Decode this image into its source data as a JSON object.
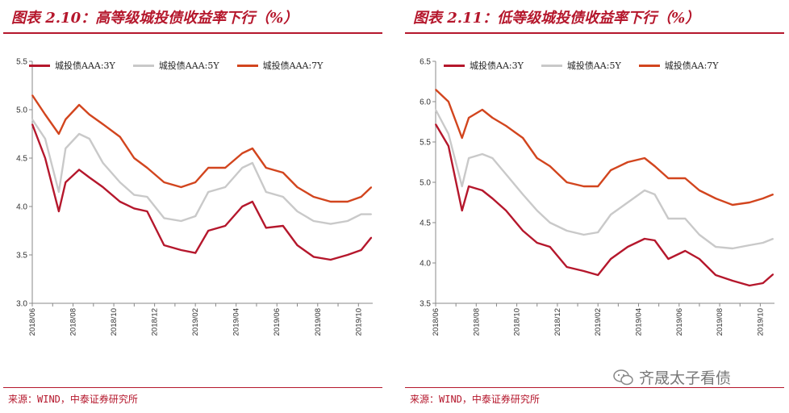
{
  "panels": [
    {
      "title": "图表 2.10：高等级城投债收益率下行（%）",
      "source": "来源：WIND，中泰证券研究所",
      "chart_data": {
        "type": "line",
        "ylim": [
          3.0,
          5.5
        ],
        "yticks": [
          "3.0",
          "3.5",
          "4.0",
          "4.5",
          "5.0",
          "5.5"
        ],
        "xlim": [
          "2018-06",
          "2019-10"
        ],
        "xticks": [
          "2018/06",
          "2018/08",
          "2018/10",
          "2018/12",
          "2019/02",
          "2019/04",
          "2019/06",
          "2019/08",
          "2019/10"
        ],
        "x": [
          "2018-06-01",
          "2018-06-20",
          "2018-07-10",
          "2018-07-20",
          "2018-08-10",
          "2018-08-25",
          "2018-09-15",
          "2018-10-10",
          "2018-11-01",
          "2018-11-20",
          "2018-12-15",
          "2019-01-10",
          "2019-02-01",
          "2019-02-20",
          "2019-03-15",
          "2019-04-10",
          "2019-04-25",
          "2019-05-15",
          "2019-06-10",
          "2019-07-01",
          "2019-07-25",
          "2019-08-20",
          "2019-09-15",
          "2019-10-05",
          "2019-10-20"
        ],
        "series": [
          {
            "name": "城投债AAA:3Y",
            "color": "#b5172c",
            "values": [
              4.85,
              4.5,
              3.95,
              4.25,
              4.38,
              4.3,
              4.2,
              4.05,
              3.98,
              3.95,
              3.6,
              3.55,
              3.52,
              3.75,
              3.8,
              4.0,
              4.05,
              3.78,
              3.8,
              3.6,
              3.48,
              3.45,
              3.5,
              3.55,
              3.68
            ]
          },
          {
            "name": "城投债AAA:5Y",
            "color": "#c9c9c9",
            "values": [
              4.9,
              4.7,
              4.15,
              4.6,
              4.75,
              4.7,
              4.45,
              4.25,
              4.12,
              4.1,
              3.88,
              3.85,
              3.9,
              4.15,
              4.2,
              4.4,
              4.45,
              4.15,
              4.1,
              3.95,
              3.85,
              3.82,
              3.85,
              3.92,
              3.92
            ]
          },
          {
            "name": "城投债AAA:7Y",
            "color": "#d2451e",
            "values": [
              5.15,
              4.95,
              4.75,
              4.9,
              5.05,
              4.95,
              4.85,
              4.72,
              4.5,
              4.4,
              4.25,
              4.2,
              4.25,
              4.4,
              4.4,
              4.55,
              4.6,
              4.4,
              4.35,
              4.2,
              4.1,
              4.05,
              4.05,
              4.1,
              4.2
            ]
          }
        ]
      }
    },
    {
      "title": "图表 2.11：低等级城投债收益率下行（%）",
      "source": "来源：WIND，中泰证券研究所",
      "chart_data": {
        "type": "line",
        "ylim": [
          3.5,
          6.5
        ],
        "yticks": [
          "3.5",
          "4.0",
          "4.5",
          "5.0",
          "5.5",
          "6.0",
          "6.5"
        ],
        "xlim": [
          "2018-06",
          "2019-10"
        ],
        "xticks": [
          "2018/06",
          "2018/08",
          "2018/10",
          "2018/12",
          "2019/02",
          "2019/04",
          "2019/06",
          "2019/08",
          "2019/10"
        ],
        "x": [
          "2018-06-01",
          "2018-06-20",
          "2018-07-10",
          "2018-07-20",
          "2018-08-10",
          "2018-08-25",
          "2018-09-15",
          "2018-10-10",
          "2018-11-01",
          "2018-11-20",
          "2018-12-15",
          "2019-01-10",
          "2019-02-01",
          "2019-02-20",
          "2019-03-15",
          "2019-04-10",
          "2019-04-25",
          "2019-05-15",
          "2019-06-10",
          "2019-07-01",
          "2019-07-25",
          "2019-08-20",
          "2019-09-15",
          "2019-10-05",
          "2019-10-20"
        ],
        "series": [
          {
            "name": "城投债AA:3Y",
            "color": "#b5172c",
            "values": [
              5.72,
              5.45,
              4.65,
              4.95,
              4.9,
              4.8,
              4.65,
              4.4,
              4.25,
              4.2,
              3.95,
              3.9,
              3.85,
              4.05,
              4.2,
              4.3,
              4.28,
              4.05,
              4.15,
              4.05,
              3.85,
              3.78,
              3.72,
              3.75,
              3.86
            ]
          },
          {
            "name": "城投债AA:5Y",
            "color": "#c9c9c9",
            "values": [
              5.9,
              5.6,
              4.95,
              5.3,
              5.35,
              5.3,
              5.1,
              4.85,
              4.65,
              4.5,
              4.4,
              4.35,
              4.38,
              4.6,
              4.75,
              4.9,
              4.85,
              4.55,
              4.55,
              4.35,
              4.2,
              4.18,
              4.22,
              4.25,
              4.3
            ]
          },
          {
            "name": "城投债AA:7Y",
            "color": "#d2451e",
            "values": [
              6.15,
              6.0,
              5.55,
              5.8,
              5.9,
              5.8,
              5.7,
              5.55,
              5.3,
              5.2,
              5.0,
              4.95,
              4.95,
              5.15,
              5.25,
              5.3,
              5.2,
              5.05,
              5.05,
              4.9,
              4.8,
              4.72,
              4.75,
              4.8,
              4.85
            ]
          }
        ]
      }
    }
  ],
  "watermark": "齐晟太子看债"
}
